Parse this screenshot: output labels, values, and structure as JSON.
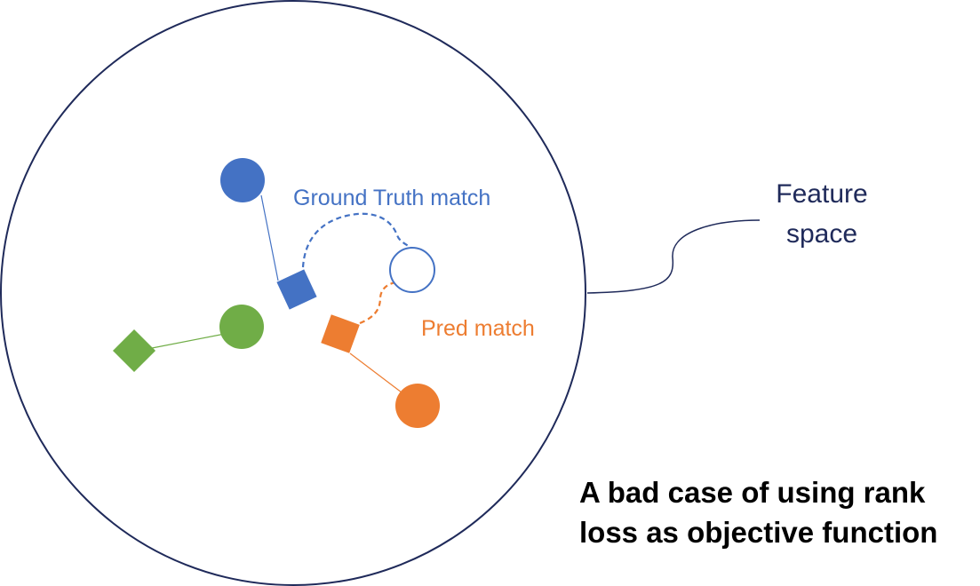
{
  "colors": {
    "blue": "#4472C4",
    "green": "#70AD47",
    "orange": "#ED7D31",
    "navy": "#1F2A5A",
    "caption": "#000000"
  },
  "labels": {
    "ground_truth_match": "Ground Truth match",
    "pred_match": "Pred match",
    "feature_space_line1": "Feature",
    "feature_space_line2": "space"
  },
  "caption": {
    "line1": "A bad case of using rank",
    "line2": "loss as objective function"
  }
}
